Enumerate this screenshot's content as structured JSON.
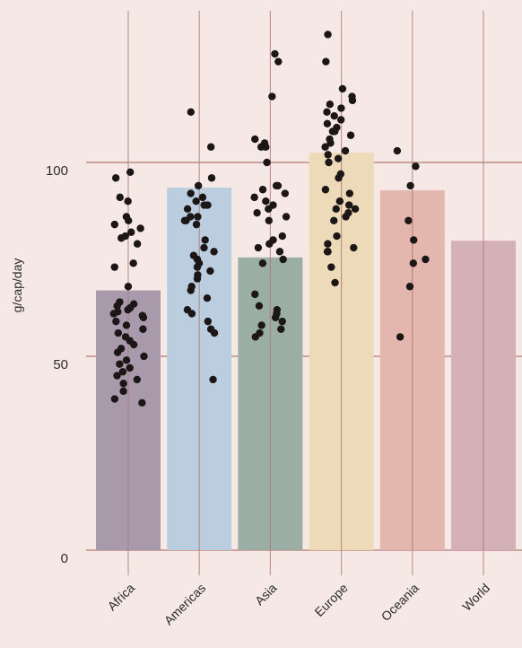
{
  "chart_data": {
    "type": "bar",
    "ylabel": "g/cap/day",
    "ylim": [
      0,
      142
    ],
    "yticks": [
      0,
      50,
      100
    ],
    "grid": true,
    "categories": [
      "Africa",
      "Americas",
      "Asia",
      "Europe",
      "Oceania",
      "World"
    ],
    "values": [
      67,
      93.5,
      75.5,
      102.5,
      92.8,
      79.8
    ],
    "bar_colors": [
      "#a89aab",
      "#bbcedf",
      "#9aaea6",
      "#ecdab9",
      "#e3b7ae",
      "#d4b0b7"
    ],
    "points": [
      [
        90,
        97.5,
        96,
        91,
        86,
        85,
        84,
        83,
        82,
        81,
        80.5,
        79,
        74,
        73,
        68,
        64,
        63.5,
        63,
        62.5,
        62,
        61.5,
        61,
        60.5,
        60,
        59,
        58,
        57,
        56,
        55,
        54,
        53,
        52,
        51,
        50,
        49,
        48,
        47,
        46,
        45,
        44,
        43,
        41,
        39,
        38
      ],
      [
        113,
        96,
        94,
        92,
        91,
        90,
        89,
        89,
        88,
        86,
        86,
        85,
        85,
        84,
        80,
        78,
        77,
        76,
        75,
        74,
        73,
        72,
        71,
        70,
        68,
        67,
        65,
        62,
        61,
        59,
        57,
        56,
        44,
        104
      ],
      [
        126,
        128,
        117,
        106,
        105,
        104,
        104,
        100,
        94,
        94,
        93,
        92,
        91,
        90,
        89,
        88,
        87,
        86,
        85,
        81,
        80,
        79,
        78,
        77,
        75,
        74,
        66,
        63,
        62,
        61,
        60,
        59,
        58,
        57,
        56,
        55
      ],
      [
        133,
        126,
        119,
        117,
        116,
        115,
        114,
        113,
        112,
        111,
        110,
        109,
        108,
        108,
        107,
        106,
        105,
        104,
        103,
        102,
        101,
        100,
        97,
        96,
        93,
        92,
        90,
        89,
        88,
        88,
        87,
        86,
        85,
        81,
        79,
        78,
        77,
        77,
        73,
        69
      ],
      [
        103,
        99,
        94,
        85,
        80,
        75,
        74,
        68,
        55
      ],
      []
    ]
  }
}
